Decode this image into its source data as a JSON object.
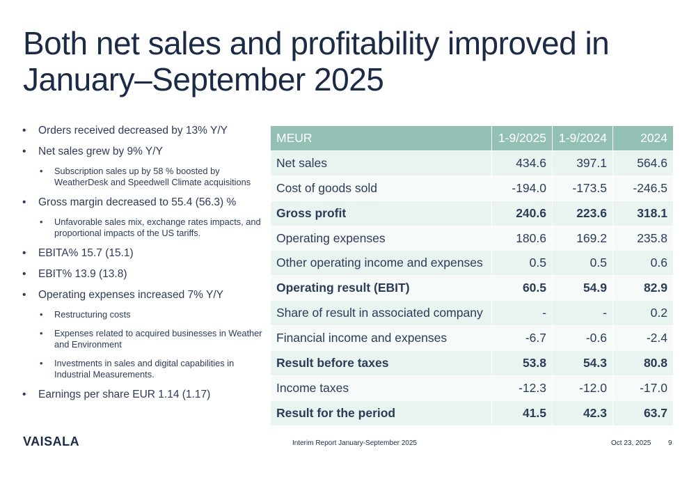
{
  "title": "Both net sales and profitability improved in January–September 2025",
  "bullets": [
    {
      "text": "Orders received decreased by 13% Y/Y",
      "sub": []
    },
    {
      "text": "Net sales grew by 9% Y/Y",
      "sub": [
        "Subscription sales up by 58 % boosted by WeatherDesk and Speedwell Climate acquisitions"
      ]
    },
    {
      "text": "Gross margin decreased to 55.4 (56.3) %",
      "sub": [
        "Unfavorable sales mix, exchange rates impacts, and proportional impacts of the US tariffs."
      ]
    },
    {
      "text": "EBITA% 15.7 (15.1)",
      "sub": []
    },
    {
      "text": "EBIT% 13.9 (13.8)",
      "sub": []
    },
    {
      "text": "Operating expenses increased 7% Y/Y",
      "sub": [
        "Restructuring costs",
        "Expenses related to acquired businesses in Weather and Environment",
        "Investments in sales and digital capabilities in Industrial Measurements."
      ]
    },
    {
      "text": "Earnings per share EUR 1.14 (1.17)",
      "sub": []
    }
  ],
  "table": {
    "headers": [
      "MEUR",
      "1-9/2025",
      "1-9/2024",
      "2024"
    ],
    "rows": [
      {
        "label": "Net sales",
        "values": [
          "434.6",
          "397.1",
          "564.6"
        ],
        "bold": false
      },
      {
        "label": "Cost of goods sold",
        "values": [
          "-194.0",
          "-173.5",
          "-246.5"
        ],
        "bold": false
      },
      {
        "label": "Gross profit",
        "values": [
          "240.6",
          "223.6",
          "318.1"
        ],
        "bold": true
      },
      {
        "label": "Operating expenses",
        "values": [
          "180.6",
          "169.2",
          "235.8"
        ],
        "bold": false
      },
      {
        "label": "Other operating income and expenses",
        "values": [
          "0.5",
          "0.5",
          "0.6"
        ],
        "bold": false
      },
      {
        "label": "Operating result (EBIT)",
        "values": [
          "60.5",
          "54.9",
          "82.9"
        ],
        "bold": true
      },
      {
        "label": "Share of result in associated company",
        "values": [
          "-",
          "-",
          "0.2"
        ],
        "bold": false
      },
      {
        "label": "Financial income and expenses",
        "values": [
          "-6.7",
          "-0.6",
          "-2.4"
        ],
        "bold": false
      },
      {
        "label": "Result before taxes",
        "values": [
          "53.8",
          "54.3",
          "80.8"
        ],
        "bold": true
      },
      {
        "label": "Income taxes",
        "values": [
          "-12.3",
          "-12.0",
          "-17.0"
        ],
        "bold": false
      },
      {
        "label": "Result for the period",
        "values": [
          "41.5",
          "42.3",
          "63.7"
        ],
        "bold": true
      }
    ]
  },
  "footer": {
    "logo": "VAISALA",
    "report": "Interim Report January-September 2025",
    "date": "Oct 23, 2025",
    "page": "9"
  },
  "colors": {
    "header_bg": "#93c0b5",
    "row_bg": "#e9f3f0",
    "row_alt_bg": "#f6faf9",
    "text": "#1b2a45"
  }
}
